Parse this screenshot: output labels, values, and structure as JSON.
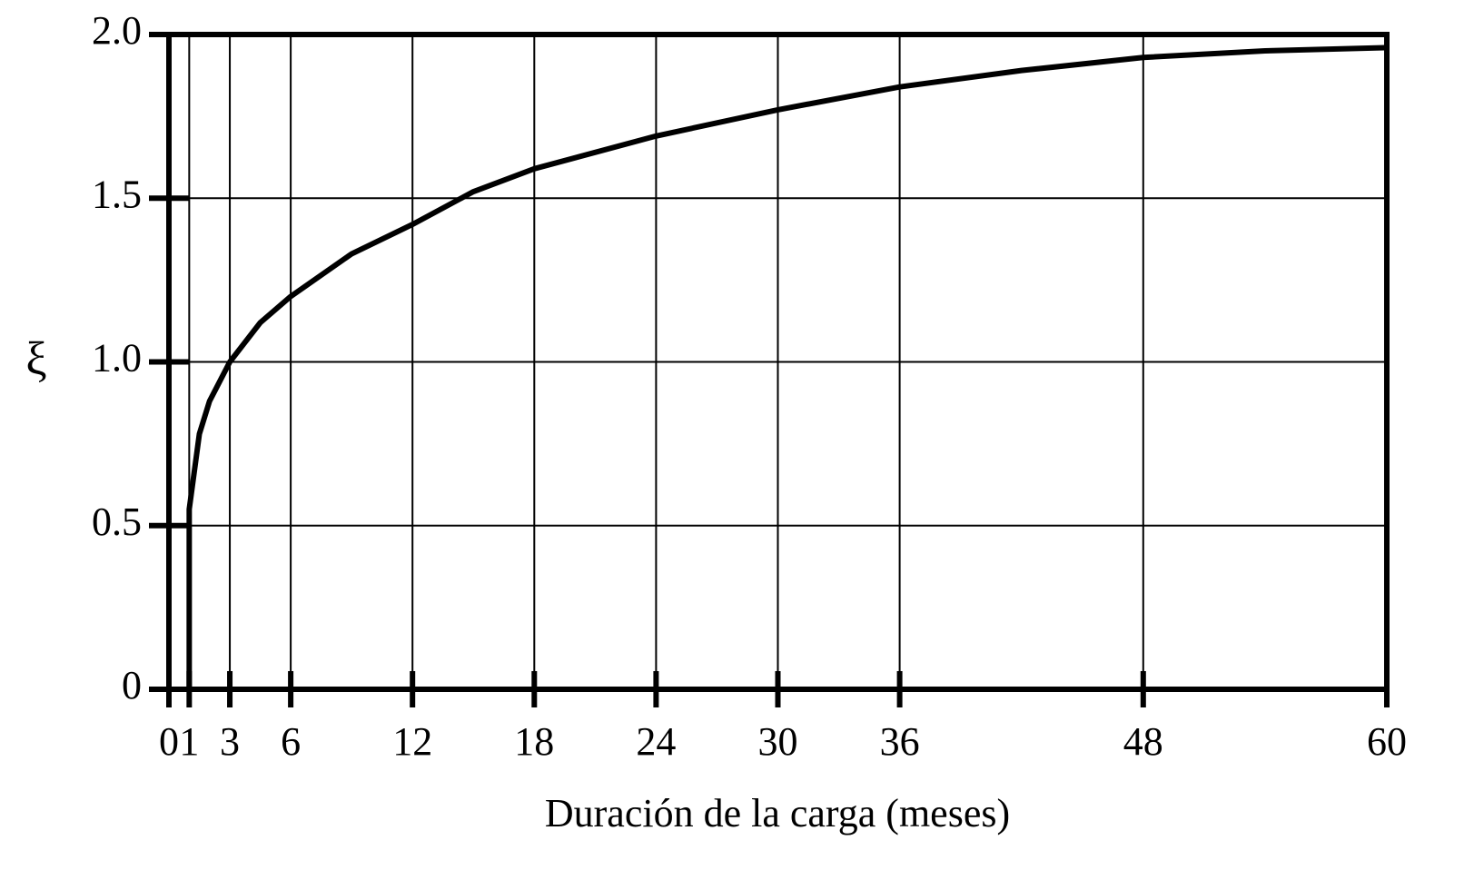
{
  "chart_data": {
    "type": "line",
    "xlabel": "Duración de la carga (meses)",
    "ylabel": "ξ",
    "xlim": [
      0,
      60
    ],
    "xticks": [
      0,
      1,
      3,
      6,
      12,
      18,
      24,
      30,
      36,
      48,
      60
    ],
    "ylim": [
      0,
      2
    ],
    "yticks": [
      0,
      0.5,
      {
        "value": 1,
        "label": "1.0"
      },
      1.5,
      {
        "value": 2,
        "label": "2.0"
      }
    ],
    "grid": true,
    "series": [
      {
        "color": "#000000",
        "x": [
          1,
          1,
          1.5,
          2,
          3,
          4.5,
          6,
          9,
          12,
          15,
          18,
          24,
          30,
          36,
          42,
          48,
          54,
          60
        ],
        "values": [
          0,
          0.55,
          0.78,
          0.88,
          1.0,
          1.12,
          1.2,
          1.33,
          1.42,
          1.52,
          1.59,
          1.69,
          1.77,
          1.84,
          1.89,
          1.93,
          1.95,
          1.96
        ]
      }
    ]
  }
}
